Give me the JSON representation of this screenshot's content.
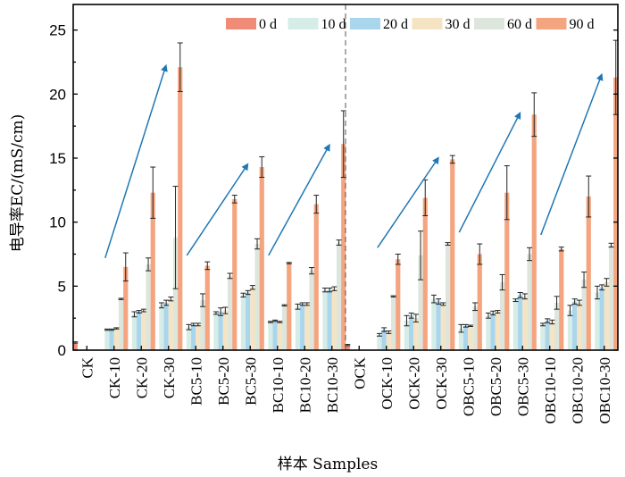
{
  "chart_data": {
    "type": "bar",
    "title": "",
    "xlabel": "样本 Samples",
    "ylabel": "电导率EC/(mS/cm)",
    "ylim": [
      0,
      27
    ],
    "yticks": [
      0,
      5,
      10,
      15,
      20,
      25
    ],
    "ytick_labels": [
      "0",
      "5",
      "10",
      "15",
      "20",
      "25"
    ],
    "legend_position": "top-right",
    "categories": [
      "CK",
      "CK-10",
      "CK-20",
      "CK-30",
      "BC5-10",
      "BC5-20",
      "BC5-30",
      "BC10-10",
      "BC10-20",
      "BC10-30",
      "OCK",
      "OCK-10",
      "OCK-20",
      "OCK-30",
      "OBC5-10",
      "OBC5-20",
      "OBC5-30",
      "OBC10-10",
      "OBC10-20",
      "OBC10-30"
    ],
    "series": [
      {
        "name": "0 d",
        "color": "#f08b77",
        "values": [
          0.6,
          null,
          null,
          null,
          null,
          null,
          null,
          null,
          null,
          null,
          0.4,
          null,
          null,
          null,
          null,
          null,
          null,
          null,
          null,
          null
        ],
        "errors": [
          0.05,
          null,
          null,
          null,
          null,
          null,
          null,
          null,
          null,
          null,
          0.05,
          null,
          null,
          null,
          null,
          null,
          null,
          null,
          null,
          null
        ]
      },
      {
        "name": "10 d",
        "color": "#d6ece6",
        "values": [
          null,
          1.6,
          2.8,
          3.5,
          1.8,
          2.9,
          4.3,
          2.2,
          3.4,
          4.7,
          null,
          1.2,
          2.3,
          4.0,
          1.7,
          2.7,
          3.9,
          2.0,
          3.1,
          4.5
        ],
        "errors": [
          null,
          0.05,
          0.2,
          0.2,
          0.2,
          0.1,
          0.15,
          0.05,
          0.2,
          0.15,
          null,
          0.1,
          0.4,
          0.3,
          0.3,
          0.2,
          0.1,
          0.1,
          0.4,
          0.5
        ]
      },
      {
        "name": "20 d",
        "color": "#a9d5ed",
        "values": [
          null,
          1.6,
          3.0,
          3.7,
          2.0,
          3.0,
          4.5,
          2.3,
          3.6,
          4.7,
          null,
          1.6,
          2.7,
          3.8,
          1.9,
          2.9,
          4.3,
          2.3,
          3.8,
          4.9
        ],
        "errors": [
          null,
          0.05,
          0.1,
          0.2,
          0.1,
          0.3,
          0.15,
          0.05,
          0.1,
          0.15,
          null,
          0.15,
          0.2,
          0.2,
          0.1,
          0.15,
          0.2,
          0.15,
          0.2,
          0.2
        ]
      },
      {
        "name": "30 d",
        "color": "#f4e4c4",
        "values": [
          null,
          1.7,
          3.1,
          4.0,
          2.0,
          3.1,
          4.9,
          2.2,
          3.6,
          4.8,
          null,
          1.4,
          2.5,
          3.6,
          1.9,
          3.0,
          4.2,
          2.2,
          3.7,
          5.3
        ],
        "errors": [
          null,
          0.05,
          0.1,
          0.15,
          0.1,
          0.25,
          0.15,
          0.05,
          0.1,
          0.15,
          null,
          0.1,
          0.3,
          0.1,
          0.05,
          0.1,
          0.2,
          0.15,
          0.2,
          0.3
        ]
      },
      {
        "name": "60 d",
        "color": "#dde6dc",
        "values": [
          null,
          4.0,
          6.7,
          8.8,
          3.9,
          5.8,
          8.3,
          3.5,
          6.2,
          8.4,
          null,
          4.2,
          7.4,
          8.3,
          3.4,
          5.3,
          7.5,
          3.7,
          5.5,
          8.2
        ],
        "errors": [
          null,
          0.05,
          0.5,
          4.0,
          0.5,
          0.2,
          0.4,
          0.05,
          0.25,
          0.2,
          null,
          0.05,
          1.9,
          0.1,
          0.3,
          0.6,
          0.5,
          0.5,
          0.6,
          0.15
        ]
      },
      {
        "name": "90 d",
        "color": "#f4a47f",
        "values": [
          null,
          6.5,
          12.3,
          22.1,
          6.6,
          11.8,
          14.3,
          6.8,
          11.4,
          16.1,
          null,
          7.1,
          11.9,
          14.9,
          7.5,
          12.3,
          18.4,
          7.9,
          12.0,
          21.3
        ],
        "errors": [
          null,
          1.1,
          2.0,
          1.9,
          0.3,
          0.3,
          0.8,
          0.05,
          0.7,
          2.6,
          null,
          0.4,
          1.4,
          0.3,
          0.8,
          2.1,
          1.7,
          0.15,
          1.6,
          2.9
        ]
      }
    ],
    "arrows": [
      {
        "from_category": "CK-10",
        "from_value": 7.2,
        "to_category": "CK-30",
        "to_value": 22.2
      },
      {
        "from_category": "BC5-10",
        "from_value": 7.4,
        "to_category": "BC5-30",
        "to_value": 14.5
      },
      {
        "from_category": "BC10-10",
        "from_value": 7.4,
        "to_category": "BC10-30",
        "to_value": 16.0
      },
      {
        "from_category": "OCK-10",
        "from_value": 8.0,
        "to_category": "OCK-30",
        "to_value": 15.0
      },
      {
        "from_category": "OBC5-10",
        "from_value": 9.2,
        "to_category": "OBC5-30",
        "to_value": 18.5
      },
      {
        "from_category": "OBC10-10",
        "from_value": 9.0,
        "to_category": "OBC10-30",
        "to_value": 21.5
      }
    ],
    "divider_after_category": "BC10-30"
  }
}
